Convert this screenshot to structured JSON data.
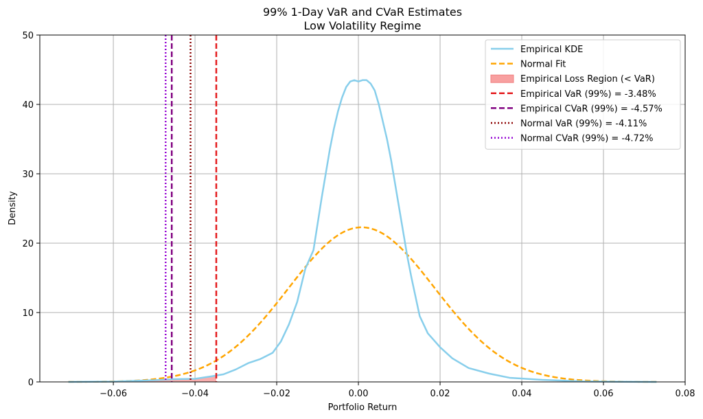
{
  "chart_data": {
    "type": "line",
    "title": "99% 1-Day VaR and CVaR Estimates",
    "subtitle": "Low Volatility Regime",
    "xlabel": "Portfolio Return",
    "ylabel": "Density",
    "xlim": [
      -0.078,
      0.08
    ],
    "ylim": [
      0,
      50
    ],
    "xticks": [
      -0.06,
      -0.04,
      -0.02,
      0.0,
      0.02,
      0.04,
      0.06,
      0.08
    ],
    "xtick_labels": [
      "−0.06",
      "−0.04",
      "−0.02",
      "0.00",
      "0.02",
      "0.04",
      "0.06",
      "0.08"
    ],
    "yticks": [
      0,
      10,
      20,
      30,
      40,
      50
    ],
    "ytick_labels": [
      "0",
      "10",
      "20",
      "30",
      "40",
      "50"
    ],
    "grid": true,
    "legend_position": "top-right",
    "series": [
      {
        "name": "Empirical KDE",
        "style": "solid",
        "color": "#87ceeb",
        "x": [
          -0.071,
          -0.06,
          -0.05,
          -0.045,
          -0.04,
          -0.036,
          -0.033,
          -0.03,
          -0.027,
          -0.024,
          -0.021,
          -0.019,
          -0.017,
          -0.015,
          -0.013,
          -0.011,
          -0.009,
          -0.008,
          -0.007,
          -0.006,
          -0.005,
          -0.004,
          -0.003,
          -0.002,
          -0.001,
          0.0,
          0.001,
          0.002,
          0.003,
          0.004,
          0.005,
          0.006,
          0.007,
          0.008,
          0.009,
          0.01,
          0.011,
          0.012,
          0.013,
          0.015,
          0.017,
          0.02,
          0.023,
          0.027,
          0.032,
          0.037,
          0.045,
          0.055,
          0.065,
          0.073
        ],
        "y": [
          0.0,
          0.05,
          0.25,
          0.4,
          0.45,
          0.8,
          1.1,
          1.8,
          2.7,
          3.3,
          4.2,
          5.8,
          8.3,
          11.5,
          16.3,
          19.0,
          26.5,
          30.0,
          33.5,
          36.5,
          39.0,
          41.0,
          42.5,
          43.3,
          43.5,
          43.3,
          43.5,
          43.5,
          43.0,
          42.0,
          40.0,
          37.5,
          35.0,
          32.0,
          28.5,
          25.0,
          21.5,
          18.0,
          15.0,
          9.5,
          7.0,
          5.0,
          3.4,
          2.0,
          1.2,
          0.6,
          0.3,
          0.08,
          0.02,
          0.0
        ]
      },
      {
        "name": "Normal Fit",
        "style": "dashed",
        "color": "#ffa500",
        "mean": 0.0008,
        "std": 0.0179
      }
    ],
    "shaded_region": {
      "name": "Empirical Loss Region (< VaR)",
      "color": "#f8a0a0",
      "x_max": -0.0348
    },
    "vlines": [
      {
        "name": "Empirical VaR (99%) = -3.48%",
        "x": -0.0348,
        "style": "dashed",
        "color": "#e41a1c"
      },
      {
        "name": "Empirical CVaR (99%) = -4.57%",
        "x": -0.0457,
        "style": "dashed",
        "color": "#800080"
      },
      {
        "name": "Normal VaR (99%) = -4.11%",
        "x": -0.0411,
        "style": "dotted",
        "color": "#8b0000"
      },
      {
        "name": "Normal CVaR (99%) = -4.72%",
        "x": -0.0472,
        "style": "dotted",
        "color": "#9400d3"
      }
    ]
  }
}
